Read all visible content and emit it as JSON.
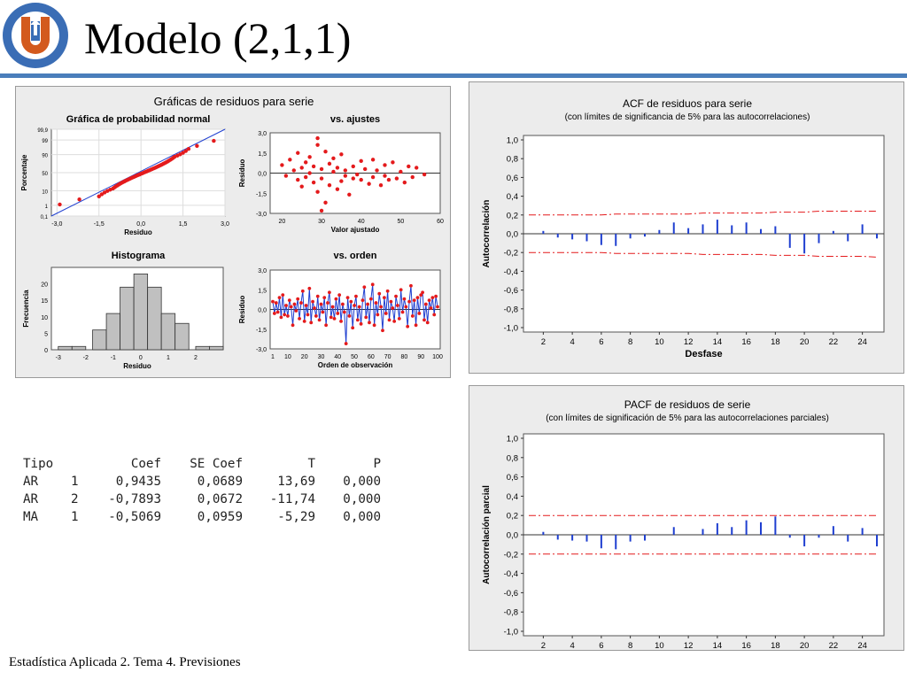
{
  "slide": {
    "title": "Modelo (2,1,1)",
    "footer": "Estadística Aplicada 2. Tema 4. Previsiones",
    "logo_text": "UNIVERSIDAD CATÓLICA DEL NORTE · CHILE",
    "accent": "#4a7ebb"
  },
  "coef_table": {
    "headers": [
      "Tipo",
      "",
      "Coef",
      "SE Coef",
      "T",
      "P"
    ],
    "rows": [
      [
        "AR",
        "1",
        "0,9435",
        "0,0689",
        "13,69",
        "0,000"
      ],
      [
        "AR",
        "2",
        "-0,7893",
        "0,0672",
        "-11,74",
        "0,000"
      ],
      [
        "MA",
        "1",
        "-0,5069",
        "0,0959",
        "-5,29",
        "0,000"
      ]
    ]
  },
  "chart_data": [
    {
      "type": "scatter",
      "panel_title": "Gráficas de residuos para serie",
      "title": "Gráfica de probabilidad normal",
      "xlabel": "Residuo",
      "ylabel": "Porcentaje",
      "x_ticks": [
        "-3,0",
        "-1,5",
        "0,0",
        "1,5",
        "3,0"
      ],
      "y_ticks": [
        "0,1",
        "1",
        "10",
        "50",
        "90",
        "99",
        "99,9"
      ],
      "points_x": [
        -2.9,
        -2.2,
        -1.5,
        -1.4,
        -1.3,
        -1.2,
        -1.1,
        -1.0,
        -0.95,
        -0.9,
        -0.85,
        -0.8,
        -0.75,
        -0.7,
        -0.65,
        -0.6,
        -0.55,
        -0.5,
        -0.45,
        -0.4,
        -0.35,
        -0.3,
        -0.25,
        -0.2,
        -0.15,
        -0.1,
        -0.05,
        0.0,
        0.05,
        0.1,
        0.15,
        0.2,
        0.25,
        0.3,
        0.35,
        0.4,
        0.45,
        0.5,
        0.55,
        0.6,
        0.65,
        0.7,
        0.75,
        0.8,
        0.85,
        0.9,
        0.95,
        1.0,
        1.05,
        1.1,
        1.15,
        1.2,
        1.3,
        1.4,
        1.5,
        1.6,
        1.7,
        2.0,
        2.6
      ],
      "fit_line": [
        [
          -3.2,
          0.1
        ],
        [
          3.0,
          99.9
        ]
      ],
      "colors": {
        "points": "#e41a1c",
        "line": "#1f3fd0"
      }
    },
    {
      "type": "scatter",
      "title": "vs. ajustes",
      "xlabel": "Valor ajustado",
      "ylabel": "Residuo",
      "xlim": [
        17,
        60
      ],
      "ylim": [
        -3.0,
        3.0
      ],
      "x_ticks": [
        "20",
        "30",
        "40",
        "50",
        "60"
      ],
      "y_ticks": [
        "3,0",
        "1,5",
        "0,0",
        "-1,5",
        "-3,0"
      ],
      "points": [
        [
          20,
          0.6
        ],
        [
          21,
          -0.2
        ],
        [
          22,
          1.0
        ],
        [
          23,
          0.2
        ],
        [
          24,
          -0.5
        ],
        [
          24,
          1.5
        ],
        [
          25,
          0.4
        ],
        [
          25,
          -1.0
        ],
        [
          26,
          0.8
        ],
        [
          26,
          -0.3
        ],
        [
          27,
          1.2
        ],
        [
          27,
          0.0
        ],
        [
          28,
          -0.7
        ],
        [
          28,
          0.5
        ],
        [
          29,
          2.1
        ],
        [
          29,
          -1.4
        ],
        [
          30,
          0.3
        ],
        [
          30,
          -0.4
        ],
        [
          31,
          1.6
        ],
        [
          31,
          -2.2
        ],
        [
          32,
          0.7
        ],
        [
          32,
          -0.9
        ],
        [
          33,
          0.1
        ],
        [
          33,
          1.1
        ],
        [
          34,
          -1.2
        ],
        [
          34,
          0.4
        ],
        [
          35,
          -0.6
        ],
        [
          35,
          1.4
        ],
        [
          36,
          0.2
        ],
        [
          36,
          -0.2
        ],
        [
          37,
          -1.6
        ],
        [
          38,
          0.5
        ],
        [
          38,
          -0.4
        ],
        [
          39,
          -0.1
        ],
        [
          40,
          0.9
        ],
        [
          40,
          -0.5
        ],
        [
          41,
          0.3
        ],
        [
          42,
          -0.8
        ],
        [
          43,
          1.0
        ],
        [
          43,
          -0.3
        ],
        [
          44,
          0.2
        ],
        [
          45,
          -0.9
        ],
        [
          46,
          0.6
        ],
        [
          46,
          -0.2
        ],
        [
          47,
          -0.5
        ],
        [
          48,
          0.8
        ],
        [
          49,
          -0.4
        ],
        [
          50,
          0.1
        ],
        [
          51,
          -0.7
        ],
        [
          52,
          0.5
        ],
        [
          53,
          -0.3
        ],
        [
          54,
          0.4
        ],
        [
          56,
          -0.1
        ],
        [
          30,
          -2.8
        ],
        [
          29,
          2.6
        ]
      ],
      "colors": {
        "points": "#e41a1c"
      }
    },
    {
      "type": "bar",
      "title": "Histograma",
      "xlabel": "Residuo",
      "ylabel": "Frecuencia",
      "x_ticks": [
        "-3",
        "-2",
        "-1",
        "0",
        "1",
        "2"
      ],
      "y_ticks": [
        "0",
        "5",
        "10",
        "15",
        "20"
      ],
      "bin_centers": [
        -2.75,
        -2.25,
        -1.5,
        -1.0,
        -0.5,
        0.0,
        0.5,
        1.0,
        1.5,
        2.25,
        2.75
      ],
      "values": [
        1,
        1,
        6,
        11,
        19,
        23,
        19,
        11,
        8,
        1,
        1
      ],
      "ylim": [
        0,
        25
      ],
      "colors": {
        "bars": "#c0c0c0"
      }
    },
    {
      "type": "line",
      "title": "vs. orden",
      "xlabel": "Orden de observación",
      "ylabel": "Residuo",
      "x_ticks": [
        "1",
        "10",
        "20",
        "30",
        "40",
        "50",
        "60",
        "70",
        "80",
        "90",
        "100"
      ],
      "y_ticks": [
        "3,0",
        "1,5",
        "0,0",
        "-1,5",
        "-3,0"
      ],
      "values": [
        0.6,
        -0.3,
        0.5,
        -0.2,
        0.9,
        -0.6,
        1.1,
        -0.4,
        0.3,
        -0.5,
        0.7,
        0.2,
        -1.2,
        0.4,
        -0.1,
        0.8,
        -0.7,
        0.5,
        1.4,
        -0.9,
        0.3,
        -0.4,
        1.6,
        -1.0,
        0.6,
        0.1,
        -0.5,
        1.0,
        -0.8,
        0.4,
        -0.2,
        0.9,
        -1.2,
        0.5,
        1.3,
        -0.6,
        0.2,
        -0.7,
        0.8,
        -0.3,
        1.1,
        -0.9,
        0.4,
        -0.2,
        -2.6,
        0.9,
        -0.5,
        0.6,
        -1.4,
        0.3,
        1.0,
        -0.8,
        0.2,
        -1.1,
        0.7,
        1.7,
        -0.6,
        0.4,
        -1.0,
        0.8,
        1.9,
        -1.2,
        0.5,
        -0.4,
        1.2,
        0.2,
        -1.6,
        0.9,
        -0.3,
        1.4,
        -0.8,
        0.6,
        0.1,
        -0.9,
        1.0,
        0.3,
        -0.7,
        1.5,
        -0.2,
        0.8,
        0.2,
        -1.3,
        0.6,
        1.8,
        -0.5,
        0.7,
        -1.2,
        0.9,
        -0.3,
        1.1,
        1.3,
        -0.8,
        0.4,
        -1.0,
        0.7,
        0.1,
        0.9,
        -0.4,
        1.0,
        0.2
      ],
      "colors": {
        "line": "#1f3fd0",
        "points": "#e41a1c"
      }
    },
    {
      "type": "bar",
      "title": "ACF de residuos para serie",
      "subtitle": "(con límites de significancia de 5% para las autocorrelaciones)",
      "xlabel": "Desfase",
      "ylabel": "Autocorrelación",
      "ylim": [
        -1.0,
        1.0
      ],
      "x_ticks": [
        "2",
        "4",
        "6",
        "8",
        "10",
        "12",
        "14",
        "16",
        "18",
        "20",
        "22",
        "24"
      ],
      "y_ticks": [
        "1,0",
        "0,8",
        "0,6",
        "0,4",
        "0,2",
        "0,0",
        "-0,2",
        "-0,4",
        "-0,6",
        "-0,8",
        "-1,0"
      ],
      "lags": [
        1,
        2,
        3,
        4,
        5,
        6,
        7,
        8,
        9,
        10,
        11,
        12,
        13,
        14,
        15,
        16,
        17,
        18,
        19,
        20,
        21,
        22,
        23,
        24,
        25
      ],
      "values": [
        0.0,
        0.03,
        -0.04,
        -0.06,
        -0.08,
        -0.12,
        -0.13,
        -0.05,
        -0.03,
        0.04,
        0.12,
        0.06,
        0.1,
        0.15,
        0.09,
        0.12,
        0.05,
        0.08,
        -0.15,
        -0.21,
        -0.1,
        0.03,
        -0.08,
        0.1,
        -0.05
      ],
      "limit_upper": [
        0.2,
        0.2,
        0.2,
        0.2,
        0.2,
        0.2,
        0.21,
        0.21,
        0.21,
        0.21,
        0.21,
        0.21,
        0.22,
        0.22,
        0.22,
        0.22,
        0.22,
        0.23,
        0.23,
        0.23,
        0.24,
        0.24,
        0.24,
        0.24,
        0.24
      ],
      "limit_lower": [
        -0.2,
        -0.2,
        -0.2,
        -0.2,
        -0.2,
        -0.2,
        -0.21,
        -0.21,
        -0.21,
        -0.21,
        -0.21,
        -0.21,
        -0.22,
        -0.22,
        -0.22,
        -0.22,
        -0.22,
        -0.23,
        -0.23,
        -0.23,
        -0.24,
        -0.24,
        -0.24,
        -0.24,
        -0.25
      ],
      "colors": {
        "bars": "#1f3fd0",
        "limits": "#e41a1c"
      }
    },
    {
      "type": "bar",
      "title": "PACF de residuos de serie",
      "subtitle": "(con límites de significación de 5% para las autocorrelaciones parciales)",
      "xlabel": "Desfase",
      "ylabel": "Autocorrelación parcial",
      "ylim": [
        -1.0,
        1.0
      ],
      "x_ticks": [
        "2",
        "4",
        "6",
        "8",
        "10",
        "12",
        "14",
        "16",
        "18",
        "20",
        "22",
        "24"
      ],
      "y_ticks": [
        "1,0",
        "0,8",
        "0,6",
        "0,4",
        "0,2",
        "0,0",
        "-0,2",
        "-0,4",
        "-0,6",
        "-0,8",
        "-1,0"
      ],
      "lags": [
        1,
        2,
        3,
        4,
        5,
        6,
        7,
        8,
        9,
        10,
        11,
        12,
        13,
        14,
        15,
        16,
        17,
        18,
        19,
        20,
        21,
        22,
        23,
        24,
        25
      ],
      "values": [
        0.0,
        0.03,
        -0.05,
        -0.06,
        -0.07,
        -0.14,
        -0.15,
        -0.07,
        -0.06,
        0.0,
        0.08,
        0.0,
        0.06,
        0.12,
        0.08,
        0.15,
        0.13,
        0.19,
        -0.03,
        -0.12,
        -0.03,
        0.09,
        -0.07,
        0.07,
        -0.12
      ],
      "limit_upper": 0.2,
      "limit_lower": -0.2,
      "colors": {
        "bars": "#1f3fd0",
        "limits": "#e41a1c"
      }
    }
  ]
}
